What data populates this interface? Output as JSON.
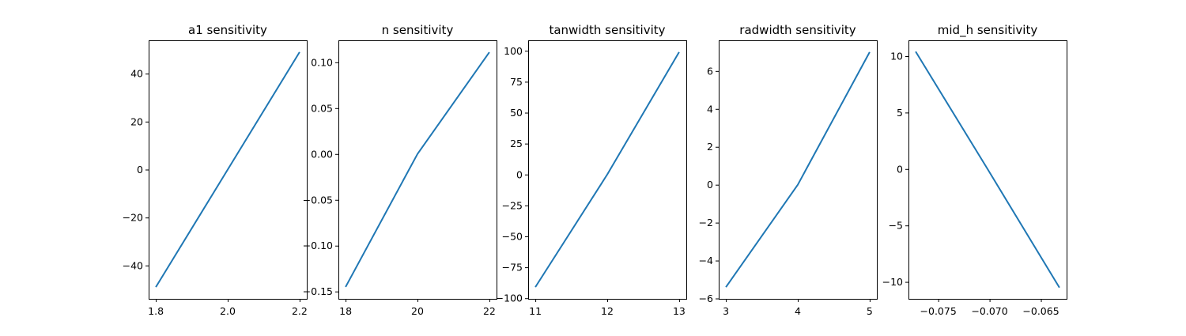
{
  "chart_data": [
    {
      "type": "line",
      "title": "a1 sensitivity",
      "xlabel": "",
      "ylabel": "",
      "x": [
        1.8,
        2.0,
        2.2
      ],
      "series": [
        {
          "values": [
            -49,
            0,
            49
          ]
        }
      ],
      "xlim": [
        1.78,
        2.22
      ],
      "ylim": [
        -53.9,
        53.9
      ],
      "xticks": [
        1.8,
        2.0,
        2.2
      ],
      "xtick_labels": [
        "1.8",
        "2.0",
        "2.2"
      ],
      "yticks": [
        40,
        20,
        0,
        -20,
        -40
      ],
      "ytick_labels": [
        "40",
        "20",
        "0",
        "−20",
        "−40"
      ],
      "grid": false,
      "color": "#1f77b4"
    },
    {
      "type": "line",
      "title": "n sensitivity",
      "xlabel": "",
      "ylabel": "",
      "x": [
        18,
        20,
        22
      ],
      "series": [
        {
          "values": [
            -0.145,
            0.0,
            0.111
          ]
        }
      ],
      "xlim": [
        17.8,
        22.2
      ],
      "ylim": [
        -0.158,
        0.124
      ],
      "xticks": [
        18,
        20,
        22
      ],
      "xtick_labels": [
        "18",
        "20",
        "22"
      ],
      "yticks": [
        0.1,
        0.05,
        0.0,
        -0.05,
        -0.1,
        -0.15
      ],
      "ytick_labels": [
        "0.10",
        "0.05",
        "0.00",
        "−0.05",
        "−0.10",
        "−0.15"
      ],
      "grid": false,
      "color": "#1f77b4"
    },
    {
      "type": "line",
      "title": "tanwidth sensitivity",
      "xlabel": "",
      "ylabel": "",
      "x": [
        11,
        12,
        13
      ],
      "series": [
        {
          "values": [
            -91,
            0,
            99
          ]
        }
      ],
      "xlim": [
        10.9,
        13.1
      ],
      "ylim": [
        -100.5,
        108.5
      ],
      "xticks": [
        11,
        12,
        13
      ],
      "xtick_labels": [
        "11",
        "12",
        "13"
      ],
      "yticks": [
        100,
        75,
        50,
        25,
        0,
        -25,
        -50,
        -75,
        -100
      ],
      "ytick_labels": [
        "100",
        "75",
        "50",
        "25",
        "0",
        "−25",
        "−50",
        "−75",
        "−100"
      ],
      "grid": false,
      "color": "#1f77b4"
    },
    {
      "type": "line",
      "title": "radwidth sensitivity",
      "xlabel": "",
      "ylabel": "",
      "x": [
        3,
        4,
        5
      ],
      "series": [
        {
          "values": [
            -5.4,
            0,
            7.0
          ]
        }
      ],
      "xlim": [
        2.9,
        5.1
      ],
      "ylim": [
        -6.02,
        7.62
      ],
      "xticks": [
        3,
        4,
        5
      ],
      "xtick_labels": [
        "3",
        "4",
        "5"
      ],
      "yticks": [
        6,
        4,
        2,
        0,
        -2,
        -4,
        -6
      ],
      "ytick_labels": [
        "6",
        "4",
        "2",
        "0",
        "−2",
        "−4",
        "−6"
      ],
      "grid": false,
      "color": "#1f77b4"
    },
    {
      "type": "line",
      "title": "mid_h sensitivity",
      "xlabel": "",
      "ylabel": "",
      "x": [
        -0.0772,
        -0.0702,
        -0.0632
      ],
      "series": [
        {
          "values": [
            10.4,
            0,
            -10.5
          ]
        }
      ],
      "xlim": [
        -0.0779,
        -0.0625
      ],
      "ylim": [
        -11.5,
        11.4
      ],
      "xticks": [
        -0.075,
        -0.07,
        -0.065
      ],
      "xtick_labels": [
        "−0.075",
        "−0.070",
        "−0.065"
      ],
      "yticks": [
        10,
        5,
        0,
        -5,
        -10
      ],
      "ytick_labels": [
        "10",
        "5",
        "0",
        "−5",
        "−10"
      ],
      "grid": false,
      "color": "#1f77b4"
    }
  ]
}
